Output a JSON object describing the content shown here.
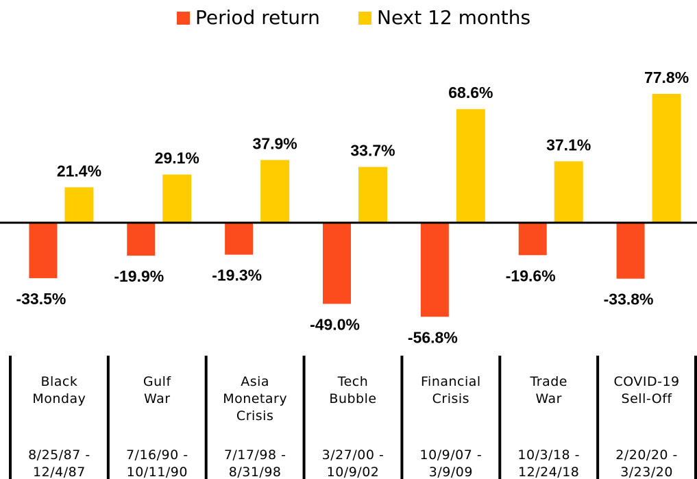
{
  "chart_data": {
    "type": "bar",
    "categories": [
      "Black Monday",
      "Gulf War",
      "Asia Monetary Crisis",
      "Tech Bubble",
      "Financial Crisis",
      "Trade War",
      "COVID-19 Sell-Off"
    ],
    "periods": [
      "8/25/87 - 12/4/87",
      "7/16/90 - 10/11/90",
      "7/17/98 - 8/31/98",
      "3/27/00 - 10/9/02",
      "10/9/07 - 3/9/09",
      "10/3/18 - 12/24/18",
      "2/20/20 - 3/23/20"
    ],
    "series": [
      {
        "name": "Period return",
        "color": "#fc4c1d",
        "values": [
          -33.5,
          -19.9,
          -19.3,
          -49.0,
          -56.8,
          -19.6,
          -33.8
        ],
        "value_labels": [
          "-33.5%",
          "-19.9%",
          "-19.3%",
          "-49.0%",
          "-56.8%",
          "-19.6%",
          "-33.8%"
        ]
      },
      {
        "name": "Next 12 months",
        "color": "#ffcc00",
        "values": [
          21.4,
          29.1,
          37.9,
          33.7,
          68.6,
          37.1,
          77.8
        ],
        "value_labels": [
          "21.4%",
          "29.1%",
          "37.9%",
          "33.7%",
          "68.6%",
          "37.1%",
          "77.8%"
        ]
      }
    ]
  }
}
